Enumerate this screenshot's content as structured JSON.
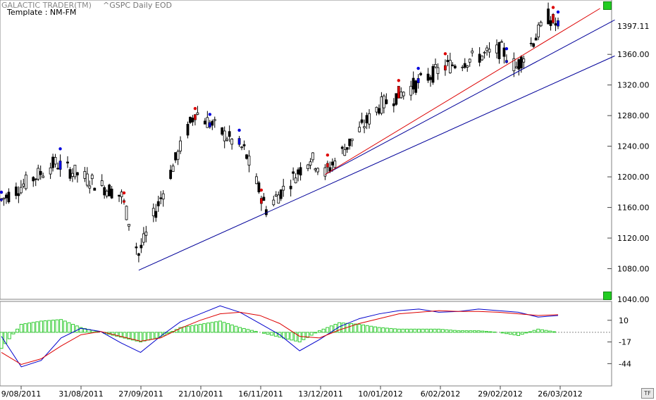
{
  "header": {
    "app_title": "GALACTIC TRADER(TM)",
    "symbol": "^GSPC Daily EOD",
    "template": "Template : NM-FM"
  },
  "price_label": "1397.11",
  "tf_label": "TF",
  "colors": {
    "up_signal": "#0000dd",
    "down_signal": "#dd0000",
    "candle": "#000000",
    "trendline_blue": "#000099",
    "trendline_red": "#dd0000",
    "histogram": "#33cc33",
    "grid": "#c0c0c0"
  },
  "chart_data": [
    {
      "type": "candlestick",
      "title": "^GSPC Daily EOD",
      "x_tick_labels": [
        "9/08/2011",
        "31/08/2011",
        "27/09/2011",
        "21/10/2011",
        "16/11/2011",
        "13/12/2011",
        "10/01/2012",
        "6/02/2012",
        "29/02/2012",
        "26/03/2012"
      ],
      "y_tick_labels": [
        "1360.00",
        "1320.00",
        "1280.00",
        "1240.00",
        "1200.00",
        "1160.00",
        "1120.00",
        "1080.00",
        "1040.00"
      ],
      "ylim": [
        1040,
        1420
      ],
      "last_price": 1397.11,
      "key_closes": [
        {
          "date": "9/08/2011",
          "value": 1170
        },
        {
          "date": "31/08/2011",
          "value": 1218
        },
        {
          "date": "27/09/2011",
          "value": 1175
        },
        {
          "date": "4/10/2011",
          "value": 1099
        },
        {
          "date": "21/10/2011",
          "value": 1238
        },
        {
          "date": "27/10/2011",
          "value": 1285
        },
        {
          "date": "16/11/2011",
          "value": 1235
        },
        {
          "date": "25/11/2011",
          "value": 1158
        },
        {
          "date": "13/12/2011",
          "value": 1225
        },
        {
          "date": "19/12/2011",
          "value": 1205
        },
        {
          "date": "10/01/2012",
          "value": 1292
        },
        {
          "date": "6/02/2012",
          "value": 1344
        },
        {
          "date": "29/02/2012",
          "value": 1366
        },
        {
          "date": "6/03/2012",
          "value": 1343
        },
        {
          "date": "19/03/2012",
          "value": 1409
        },
        {
          "date": "23/03/2012",
          "value": 1397
        }
      ],
      "trendlines": [
        {
          "color": "blue",
          "from": {
            "date": "4/10/2011",
            "value": 1078
          },
          "to": {
            "date": "26/03/2012",
            "value": 1358
          }
        },
        {
          "color": "blue",
          "from": {
            "date": "19/12/2011",
            "value": 1203
          },
          "to": {
            "date": "26/03/2012",
            "value": 1405
          }
        },
        {
          "color": "red",
          "from": {
            "date": "19/12/2011",
            "value": 1203
          },
          "to": {
            "date": "20/03/2012",
            "value": 1420
          }
        }
      ],
      "signals": {
        "red_dots": [
          "8/08/2011",
          "28/09/2011",
          "27/10/2011",
          "23/11/2011",
          "20/12/2011",
          "18/01/2012",
          "6/02/2012",
          "21/03/2012"
        ],
        "blue_dots": [
          "9/08/2011",
          "2/09/2011",
          "2/11/2011",
          "14/11/2011",
          "26/01/2012",
          "2/03/2012",
          "26/03/2012"
        ]
      }
    },
    {
      "type": "line",
      "title": "",
      "y_tick_labels": [
        "10",
        "-17",
        "-44"
      ],
      "ylim": [
        -70,
        30
      ],
      "series": [
        {
          "color": "blue",
          "values": [
            -10,
            -48,
            -40,
            -12,
            0,
            -4,
            -18,
            -30,
            -10,
            8,
            18,
            28,
            20,
            6,
            -8,
            -28,
            -14,
            2,
            12,
            18,
            22,
            24,
            20,
            21,
            24,
            22,
            20,
            14,
            16
          ]
        },
        {
          "color": "red",
          "values": [
            -30,
            -45,
            -38,
            -22,
            -8,
            -4,
            -10,
            -16,
            -12,
            0,
            10,
            18,
            20,
            16,
            6,
            -10,
            -12,
            -2,
            6,
            12,
            18,
            20,
            22,
            21,
            21,
            20,
            18,
            16,
            17
          ]
        },
        {
          "color": "green",
          "type": "histogram",
          "values": [
            -20,
            10,
            14,
            16,
            6,
            0,
            -6,
            -12,
            -6,
            6,
            10,
            14,
            6,
            0,
            -6,
            -12,
            2,
            12,
            10,
            6,
            4,
            4,
            4,
            2,
            2,
            0,
            -4,
            4,
            0
          ]
        }
      ]
    }
  ]
}
